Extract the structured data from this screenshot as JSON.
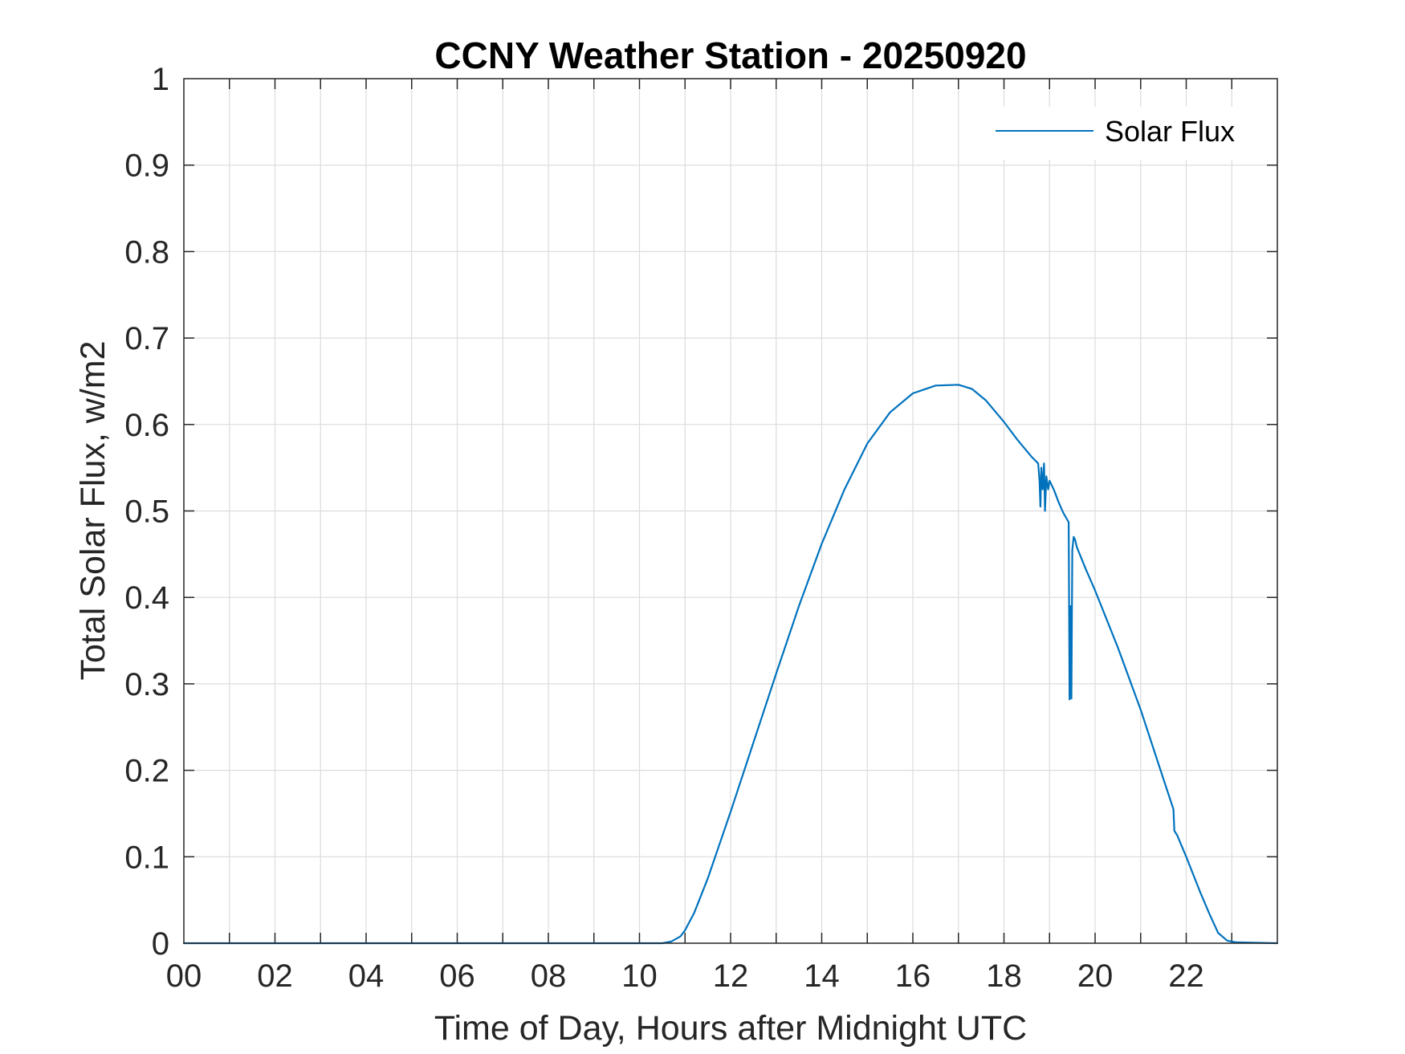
{
  "chart_data": {
    "type": "line",
    "title": "CCNY Weather Station - 20250920",
    "xlabel": "Time of Day, Hours after Midnight UTC",
    "ylabel": "Total Solar Flux, w/m2",
    "xlim": [
      0,
      24
    ],
    "ylim": [
      0,
      1
    ],
    "xticks": [
      0,
      2,
      4,
      6,
      8,
      10,
      12,
      14,
      16,
      18,
      20,
      22
    ],
    "xtick_labels": [
      "00",
      "02",
      "04",
      "06",
      "08",
      "10",
      "12",
      "14",
      "16",
      "18",
      "20",
      "22"
    ],
    "yticks": [
      0,
      0.1,
      0.2,
      0.3,
      0.4,
      0.5,
      0.6,
      0.7,
      0.8,
      0.9,
      1
    ],
    "ytick_labels": [
      "0",
      "0.1",
      "0.2",
      "0.3",
      "0.4",
      "0.5",
      "0.6",
      "0.7",
      "0.8",
      "0.9",
      "1"
    ],
    "grid": true,
    "legend_position": "top-right",
    "series": [
      {
        "name": "Solar Flux",
        "color": "#0072BD",
        "x": [
          0,
          10.5,
          10.7,
          10.9,
          11.0,
          11.2,
          11.5,
          12.0,
          12.5,
          13.0,
          13.5,
          14.0,
          14.5,
          15.0,
          15.5,
          16.0,
          16.5,
          17.0,
          17.3,
          17.6,
          18.0,
          18.3,
          18.6,
          18.75,
          18.78,
          18.8,
          18.82,
          18.85,
          18.88,
          18.9,
          18.93,
          18.97,
          19.0,
          19.1,
          19.2,
          19.3,
          19.42,
          19.44,
          19.46,
          19.48,
          19.5,
          19.53,
          19.56,
          19.6,
          19.8,
          20.0,
          20.5,
          21.0,
          21.5,
          21.72,
          21.74,
          21.8,
          22.0,
          22.3,
          22.5,
          22.7,
          22.9,
          23.1,
          24.0
        ],
        "values": [
          0,
          0,
          0.002,
          0.008,
          0.015,
          0.035,
          0.075,
          0.152,
          0.232,
          0.312,
          0.39,
          0.462,
          0.525,
          0.578,
          0.614,
          0.636,
          0.645,
          0.646,
          0.641,
          0.628,
          0.603,
          0.582,
          0.563,
          0.555,
          0.535,
          0.505,
          0.55,
          0.525,
          0.555,
          0.5,
          0.54,
          0.525,
          0.535,
          0.524,
          0.51,
          0.498,
          0.487,
          0.282,
          0.39,
          0.283,
          0.455,
          0.47,
          0.467,
          0.458,
          0.432,
          0.408,
          0.342,
          0.27,
          0.19,
          0.155,
          0.13,
          0.125,
          0.1,
          0.06,
          0.035,
          0.012,
          0.003,
          0.001,
          0
        ]
      }
    ]
  }
}
